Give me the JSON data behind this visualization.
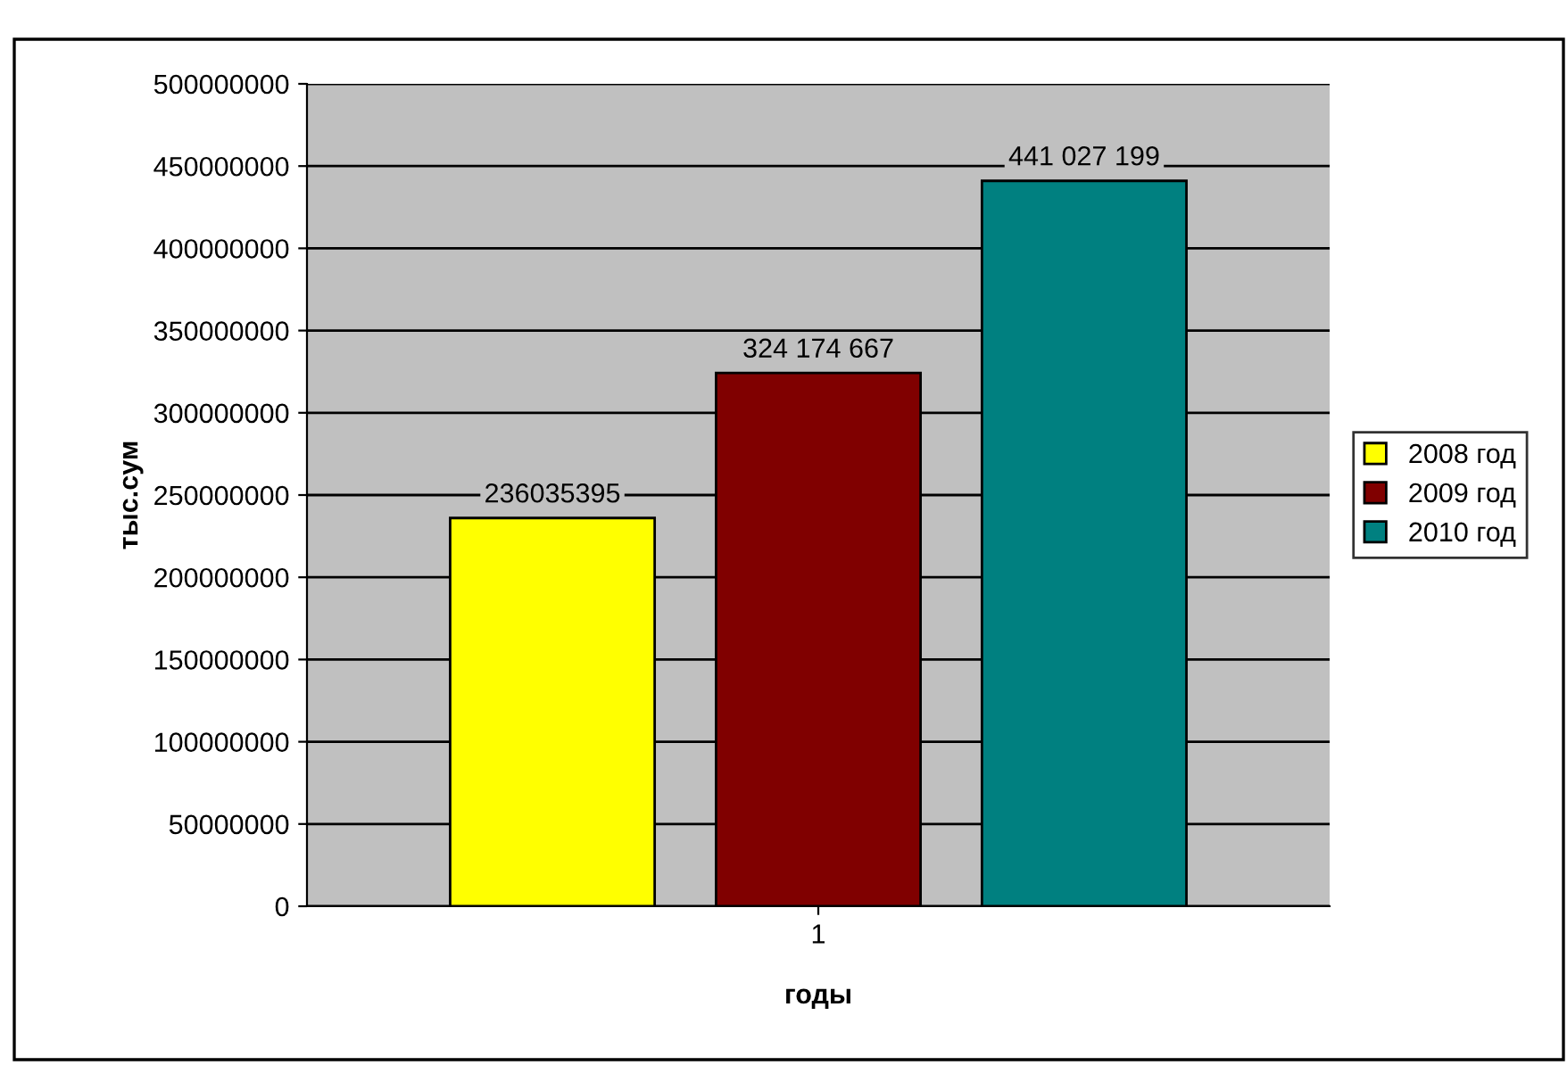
{
  "chart_data": {
    "type": "bar",
    "categories": [
      "1"
    ],
    "xlabel": "годы",
    "ylabel": "тыс.сум",
    "series": [
      {
        "name": "2008 год",
        "color": "#ffff00",
        "values": [
          236035395
        ],
        "value_labels": [
          "236035395"
        ]
      },
      {
        "name": "2009 год",
        "color": "#800000",
        "values": [
          324174667
        ],
        "value_labels": [
          "324 174 667"
        ]
      },
      {
        "name": "2010 год",
        "color": "#008080",
        "values": [
          441027199
        ],
        "value_labels": [
          "441 027 199"
        ]
      }
    ],
    "ylim": [
      0,
      500000000
    ],
    "yticks": [
      0,
      50000000,
      100000000,
      150000000,
      200000000,
      250000000,
      300000000,
      350000000,
      400000000,
      450000000,
      500000000
    ],
    "grid": "y",
    "legend": "right"
  }
}
